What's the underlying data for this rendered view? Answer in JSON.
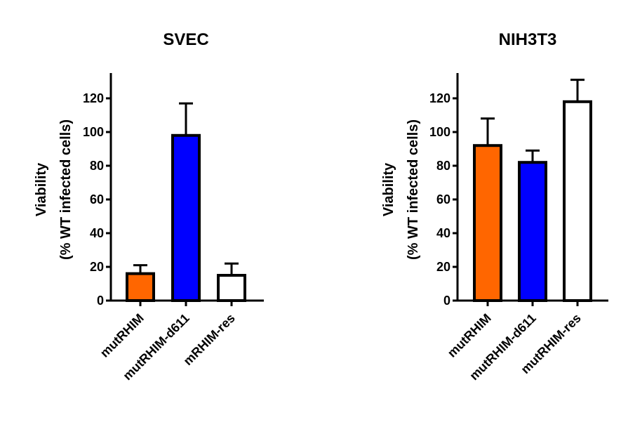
{
  "chart_data": [
    {
      "type": "bar",
      "title": "SVEC",
      "ylabel_line1": "Viability",
      "ylabel_line2": "(% WT infected cells)",
      "categories": [
        "mutRHIM",
        "mutRHIM-d611",
        "mRHIM-res"
      ],
      "values": [
        16,
        98,
        15
      ],
      "errors": [
        5,
        19,
        7
      ],
      "colors": [
        "#ff6600",
        "#0000ff",
        "#ffffff"
      ],
      "yticks": [
        "0",
        "20",
        "40",
        "60",
        "80",
        "100",
        "120"
      ],
      "ylim": [
        0,
        135
      ]
    },
    {
      "type": "bar",
      "title": "NIH3T3",
      "ylabel_line1": "Viability",
      "ylabel_line2": "(% WT infected cells)",
      "categories": [
        "mutRHIM",
        "mutRHIM-d611",
        "mutRHIM-res"
      ],
      "values": [
        92,
        82,
        118
      ],
      "errors": [
        16,
        7,
        13
      ],
      "colors": [
        "#ff6600",
        "#0000ff",
        "#ffffff"
      ],
      "yticks": [
        "0",
        "20",
        "40",
        "60",
        "80",
        "100",
        "120"
      ],
      "ylim": [
        0,
        135
      ]
    }
  ]
}
